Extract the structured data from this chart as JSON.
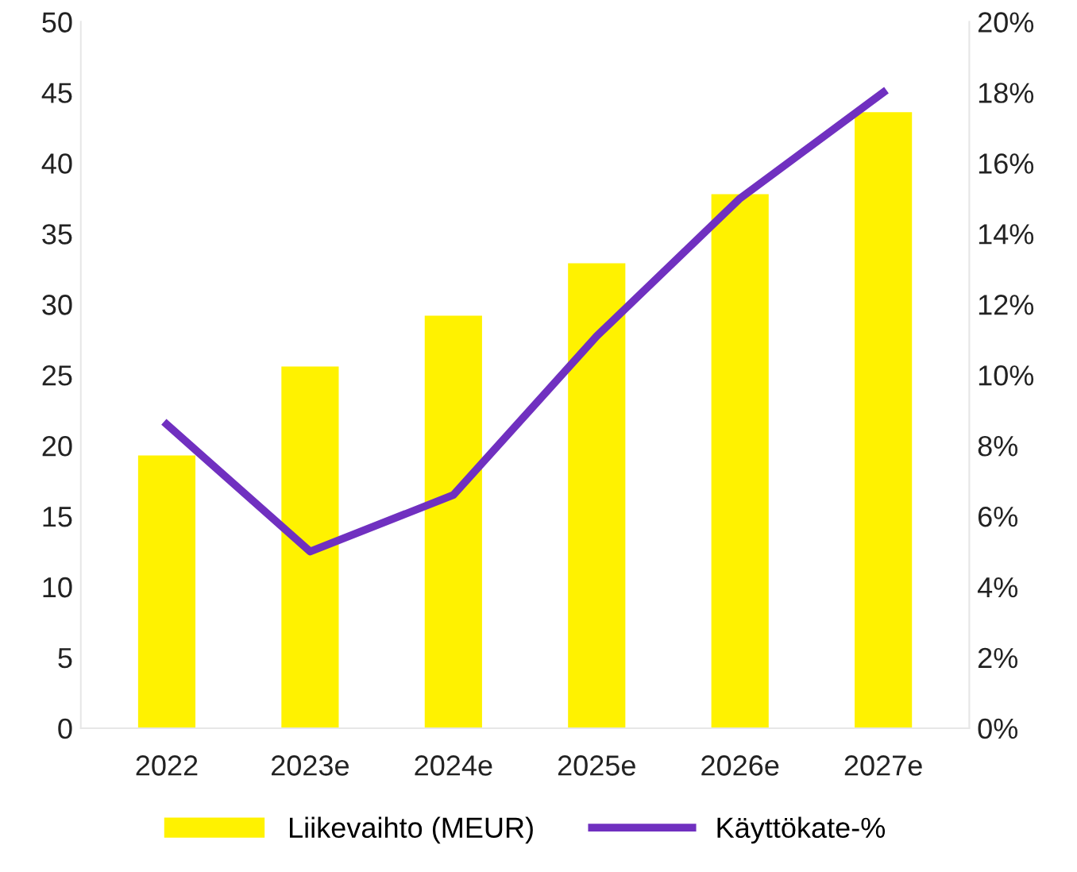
{
  "chart_data": {
    "type": "bar",
    "categories": [
      "2022",
      "2023e",
      "2024e",
      "2025e",
      "2026e",
      "2027e"
    ],
    "series": [
      {
        "name": "Liikevaihto (MEUR)",
        "color": "#fff200",
        "values": [
          19.3,
          25.6,
          29.2,
          32.9,
          37.8,
          43.6
        ]
      },
      {
        "name": "Käyttökate-%",
        "type": "line",
        "axis": "y2",
        "color": "#7030c0",
        "values": [
          8.6,
          5.0,
          6.6,
          11.1,
          15.0,
          18.0
        ]
      }
    ],
    "ylim": [
      0,
      50
    ],
    "yticks": [
      0,
      5,
      10,
      15,
      20,
      25,
      30,
      35,
      40,
      45,
      50
    ],
    "y2lim": [
      0,
      20
    ],
    "y2ticks": [
      {
        "value": 0,
        "label": "0%"
      },
      {
        "value": 2,
        "label": "2%"
      },
      {
        "value": 4,
        "label": "4%"
      },
      {
        "value": 6,
        "label": "6%"
      },
      {
        "value": 8,
        "label": "8%"
      },
      {
        "value": 10,
        "label": "10%"
      },
      {
        "value": 12,
        "label": "12%"
      },
      {
        "value": 14,
        "label": "14%"
      },
      {
        "value": 16,
        "label": "16%"
      },
      {
        "value": 18,
        "label": "18%"
      },
      {
        "value": 20,
        "label": "20%"
      }
    ],
    "legend": "bottom",
    "grid": false,
    "marker": "none",
    "line_style": "solid"
  }
}
